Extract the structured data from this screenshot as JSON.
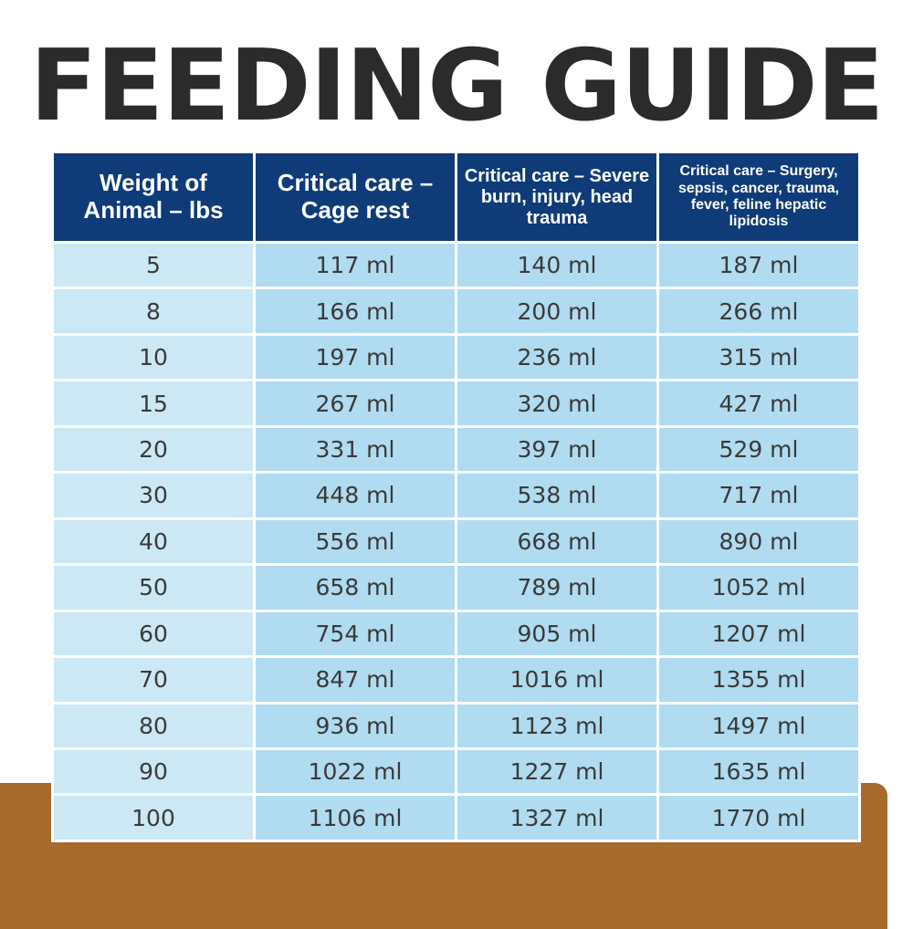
{
  "title": "FEEDING GUIDE",
  "colors": {
    "header_bg": "#0f3b78",
    "first_col_bg": "#cde8f5",
    "cell_bg": "#b0dbf0",
    "title_color": "#2b2b2b",
    "base_color": "#a56a2c"
  },
  "table": {
    "headers": [
      "Weight of Animal – lbs",
      "Critical care – Cage rest",
      "Critical care – Severe burn, injury, head trauma",
      "Critical care – Surgery, sepsis, cancer, trauma, fever, feline hepatic lipidosis"
    ],
    "rows": [
      [
        "5",
        "117 ml",
        "140 ml",
        "187 ml"
      ],
      [
        "8",
        "166 ml",
        "200 ml",
        "266 ml"
      ],
      [
        "10",
        "197 ml",
        "236 ml",
        "315 ml"
      ],
      [
        "15",
        "267 ml",
        "320 ml",
        "427 ml"
      ],
      [
        "20",
        "331 ml",
        "397 ml",
        "529 ml"
      ],
      [
        "30",
        "448 ml",
        "538 ml",
        "717 ml"
      ],
      [
        "40",
        "556 ml",
        "668 ml",
        "890 ml"
      ],
      [
        "50",
        "658 ml",
        "789 ml",
        "1052 ml"
      ],
      [
        "60",
        "754 ml",
        "905 ml",
        "1207 ml"
      ],
      [
        "70",
        "847 ml",
        "1016 ml",
        "1355 ml"
      ],
      [
        "80",
        "936 ml",
        "1123 ml",
        "1497 ml"
      ],
      [
        "90",
        "1022 ml",
        "1227 ml",
        "1635 ml"
      ],
      [
        "100",
        "1106 ml",
        "1327 ml",
        "1770 ml"
      ]
    ]
  }
}
